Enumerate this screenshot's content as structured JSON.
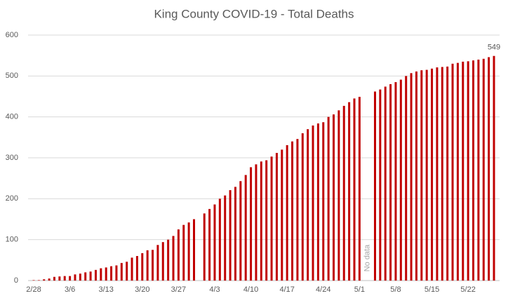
{
  "chart_data": {
    "type": "bar",
    "title": "King County COVID-19 - Total Deaths",
    "categories": [
      "2/28",
      null,
      null,
      null,
      null,
      null,
      null,
      "3/6",
      null,
      null,
      null,
      null,
      null,
      null,
      "3/13",
      null,
      null,
      null,
      null,
      null,
      null,
      "3/20",
      null,
      null,
      null,
      null,
      null,
      null,
      "3/27",
      null,
      null,
      null,
      null,
      null,
      null,
      "4/3",
      null,
      null,
      null,
      null,
      null,
      null,
      "4/10",
      null,
      null,
      null,
      null,
      null,
      null,
      "4/17",
      null,
      null,
      null,
      null,
      null,
      null,
      "4/24",
      null,
      null,
      null,
      null,
      null,
      null,
      "5/1",
      null,
      null,
      null,
      null,
      null,
      null,
      "5/8",
      null,
      null,
      null,
      null,
      null,
      null,
      "5/15",
      null,
      null,
      null,
      null,
      null,
      null,
      "5/22",
      null,
      null,
      null,
      null,
      null
    ],
    "values": [
      1,
      1,
      3,
      5,
      9,
      10,
      11,
      11,
      15,
      17,
      20,
      22,
      26,
      30,
      32,
      35,
      37,
      43,
      46,
      56,
      60,
      67,
      74,
      75,
      87,
      94,
      100,
      109,
      125,
      136,
      142,
      150,
      null,
      164,
      175,
      186,
      200,
      208,
      221,
      229,
      243,
      258,
      277,
      284,
      291,
      294,
      303,
      312,
      320,
      331,
      340,
      346,
      360,
      370,
      379,
      384,
      387,
      400,
      406,
      416,
      427,
      436,
      445,
      449,
      null,
      null,
      462,
      467,
      474,
      480,
      485,
      491,
      500,
      507,
      511,
      514,
      515,
      518,
      521,
      522,
      523,
      530,
      532,
      535,
      536,
      538,
      540,
      542,
      546,
      549
    ],
    "color": "#c00000",
    "ylim": [
      0,
      600
    ],
    "yticks": [
      0,
      100,
      200,
      300,
      400,
      500,
      600
    ],
    "grid": true,
    "annotations": [
      "No data"
    ]
  }
}
